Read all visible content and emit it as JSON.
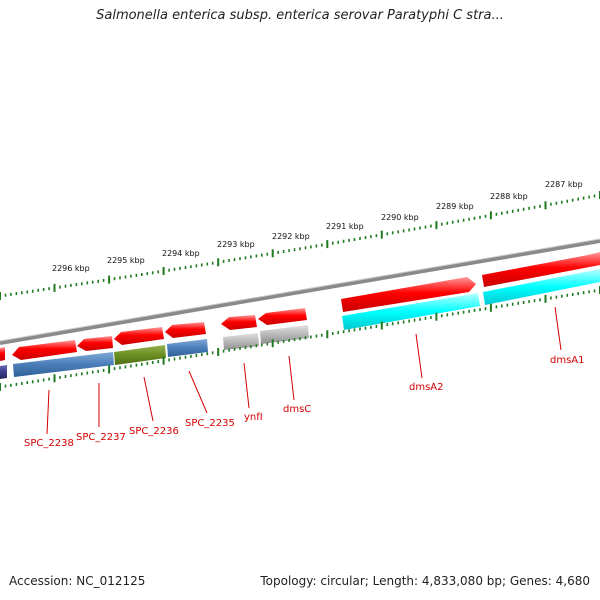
{
  "title": "Salmonella enterica subsp. enterica serovar Paratyphi C stra...",
  "footer": {
    "accession": "Accession: NC_012125",
    "summary": "Topology: circular; Length: 4,833,080 bp; Genes: 4,680"
  },
  "colors": {
    "backbone": "#808080",
    "tick": "#1f7a1f",
    "label": "#d40000",
    "forward_feature": "#ff0000",
    "cds_steel": "#4a7db8",
    "cds_olive": "#6b8e23",
    "cds_gray": "#b8b8b8",
    "cds_cyan": "#00ffff",
    "cds_navy": "#3a3a8a"
  },
  "kbp_labels": [
    "2296 kbp",
    "2295 kbp",
    "2294 kbp",
    "2293 kbp",
    "2292 kbp",
    "2291 kbp",
    "2290 kbp",
    "2289 kbp",
    "2288 kbp",
    "2287 kbp"
  ],
  "genes": [
    {
      "label": "SPC_2238",
      "color": "cds_steel"
    },
    {
      "label": "SPC_2237",
      "color": "cds_steel"
    },
    {
      "label": "SPC_2236",
      "color": "cds_olive"
    },
    {
      "label": "SPC_2235",
      "color": "cds_steel"
    },
    {
      "label": "ynfI",
      "color": "cds_gray"
    },
    {
      "label": "dmsC",
      "color": "cds_gray"
    },
    {
      "label": "dmsA2",
      "color": "cds_cyan"
    },
    {
      "label": "dmsA1",
      "color": "cds_cyan"
    }
  ]
}
